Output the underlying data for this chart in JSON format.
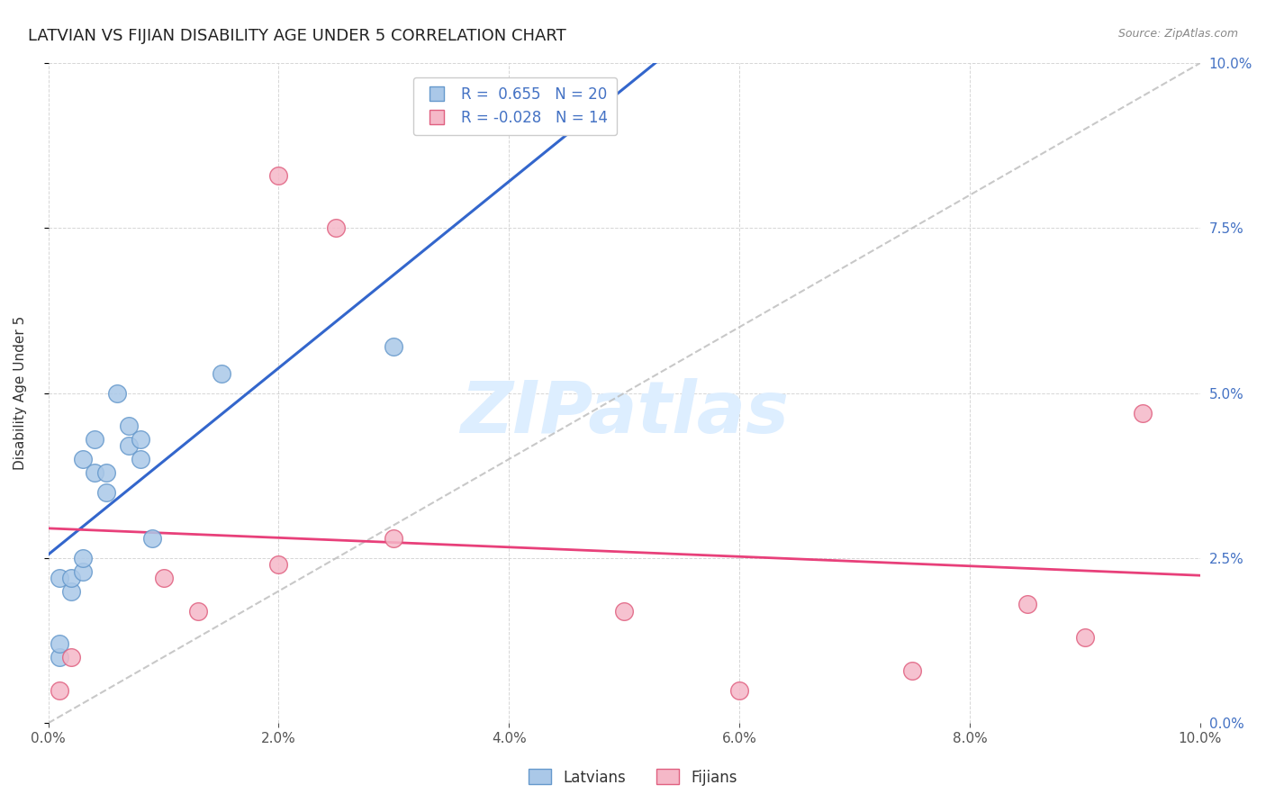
{
  "title": "LATVIAN VS FIJIAN DISABILITY AGE UNDER 5 CORRELATION CHART",
  "source": "Source: ZipAtlas.com",
  "ylabel": "Disability Age Under 5",
  "xlabel": "",
  "xmin": 0.0,
  "xmax": 0.1,
  "ymin": 0.0,
  "ymax": 0.1,
  "yticks": [
    0.0,
    0.025,
    0.05,
    0.075,
    0.1
  ],
  "xticks": [
    0.0,
    0.02,
    0.04,
    0.06,
    0.08,
    0.1
  ],
  "latvian_x": [
    0.001,
    0.001,
    0.001,
    0.002,
    0.002,
    0.003,
    0.003,
    0.003,
    0.004,
    0.004,
    0.005,
    0.005,
    0.006,
    0.007,
    0.007,
    0.008,
    0.008,
    0.009,
    0.015,
    0.03
  ],
  "latvian_y": [
    0.01,
    0.012,
    0.022,
    0.02,
    0.022,
    0.023,
    0.025,
    0.04,
    0.038,
    0.043,
    0.035,
    0.038,
    0.05,
    0.042,
    0.045,
    0.04,
    0.043,
    0.028,
    0.053,
    0.057
  ],
  "fijian_x": [
    0.001,
    0.002,
    0.01,
    0.013,
    0.02,
    0.02,
    0.025,
    0.03,
    0.05,
    0.06,
    0.075,
    0.085,
    0.09,
    0.095
  ],
  "fijian_y": [
    0.005,
    0.01,
    0.022,
    0.017,
    0.024,
    0.083,
    0.075,
    0.028,
    0.017,
    0.005,
    0.008,
    0.018,
    0.013,
    0.047
  ],
  "latvian_color": "#aac8e8",
  "fijian_color": "#f5b8c8",
  "latvian_edge": "#6699cc",
  "fijian_edge": "#e06080",
  "latvian_R": 0.655,
  "latvian_N": 20,
  "fijian_R": -0.028,
  "fijian_N": 14,
  "trend_latvian_color": "#3366cc",
  "trend_fijian_color": "#e8407a",
  "diagonal_color": "#bbbbbb",
  "watermark": "ZIPatlas",
  "watermark_color": "#ddeeff",
  "background_color": "#ffffff",
  "grid_color": "#cccccc",
  "axis_label_color": "#4472c4",
  "title_fontsize": 13,
  "label_fontsize": 11,
  "tick_fontsize": 11,
  "scatter_size": 200
}
